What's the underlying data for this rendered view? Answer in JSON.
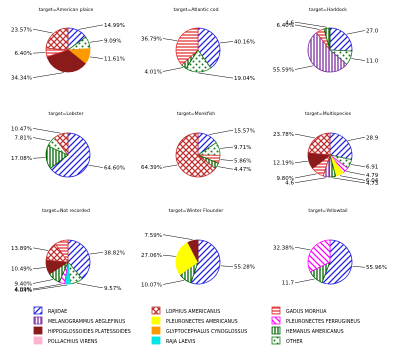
{
  "categories": {
    "RAJIDAE": {
      "color": "#1f1fe0",
      "pattern": "diag"
    },
    "MELANOGRAMMUS AEGLEFINUS": {
      "color": "#7b2fa0",
      "pattern": "vert"
    },
    "HIPPOGLOSSOIDES PLATESSOIDES": {
      "color": "#8b1a1a",
      "pattern": "solid"
    },
    "POLLACHIUS VIRENS": {
      "color": "#ffb3d0",
      "pattern": "solid"
    },
    "LOPHIUS AMERICANUS": {
      "color": "#c03030",
      "pattern": "cross"
    },
    "PLEURONECTES AMERICANUS": {
      "color": "#ffff00",
      "pattern": "solid"
    },
    "GLYPTOCEPHALUS CYNOGLOSSUS": {
      "color": "#ff9900",
      "pattern": "solid"
    },
    "RAJA LAEVIS": {
      "color": "#00e5e5",
      "pattern": "solid"
    },
    "GADUS MORHUA": {
      "color": "#e03030",
      "pattern": "horiz"
    },
    "PLEURONECTES FERRUGINEUS": {
      "color": "#ff00ff",
      "pattern": "diag2"
    },
    "HEMANUS AMERICANUS": {
      "color": "#006400",
      "pattern": "vert"
    },
    "OTHER": {
      "color": "#1a7a1a",
      "pattern": "dots"
    }
  },
  "legend": [
    "RAJIDAE",
    "LOPHIUS AMERICANUS",
    "GADUS MORHUA",
    "MELANOGRAMMUS AEGLEFINUS",
    "PLEURONECTES AMERICANUS",
    "PLEURONECTES FERRUGINEUS",
    "HIPPOGLOSSOIDES PLATESSOIDES",
    "GLYPTOCEPHALUS CYNOGLOSSUS",
    "HEMANUS AMERICANUS",
    "POLLACHIUS VIRENS",
    "RAJA LAEVIS",
    "OTHER"
  ],
  "chart_data": [
    {
      "type": "pie",
      "title": "target=American plaice",
      "slices": [
        {
          "category": "RAJIDAE",
          "value": 14.99,
          "label": "14.99%"
        },
        {
          "category": "OTHER",
          "value": 9.09,
          "label": "9.09%"
        },
        {
          "category": "GLYPTOCEPHALUS CYNOGLOSSUS",
          "value": 11.61,
          "label": "11.61%"
        },
        {
          "category": "HIPPOGLOSSOIDES PLATESSOIDES",
          "value": 34.34,
          "label": "34.34%"
        },
        {
          "category": "GADUS MORHUA",
          "value": 6.4,
          "label": "6.40%"
        },
        {
          "category": "LOPHIUS AMERICANUS",
          "value": 23.57,
          "label": "23.57%"
        }
      ]
    },
    {
      "type": "pie",
      "title": "target=Atlantic cod",
      "slices": [
        {
          "category": "RAJIDAE",
          "value": 40.16,
          "label": "40.16%"
        },
        {
          "category": "OTHER",
          "value": 19.04,
          "label": "19.04%"
        },
        {
          "category": "HEMANUS AMERICANUS",
          "value": 4.01,
          "label": "4.01%"
        },
        {
          "category": "GADUS MORHUA",
          "value": 36.79,
          "label": "36.79%"
        }
      ]
    },
    {
      "type": "pie",
      "title": "target=Haddock",
      "slices": [
        {
          "category": "RAJIDAE",
          "value": 27.0,
          "label": "27.0"
        },
        {
          "category": "OTHER",
          "value": 11.0,
          "label": "11.0"
        },
        {
          "category": "MELANOGRAMMUS AEGLEFINUS",
          "value": 55.59,
          "label": "55.59%"
        },
        {
          "category": "GADUS MORHUA",
          "value": 6.4,
          "label": "6.40%"
        },
        {
          "category": "HEMANUS AMERICANUS",
          "value": 4.6,
          "label": "4.6"
        }
      ]
    },
    {
      "type": "pie",
      "title": "target=Lobster",
      "slices": [
        {
          "category": "RAJIDAE",
          "value": 64.6,
          "label": "64.60%"
        },
        {
          "category": "HEMANUS AMERICANUS",
          "value": 17.08,
          "label": "17.08%"
        },
        {
          "category": "OTHER",
          "value": 7.81,
          "label": "7.81%"
        },
        {
          "category": "LOPHIUS AMERICANUS",
          "value": 10.47,
          "label": "10.47%"
        }
      ]
    },
    {
      "type": "pie",
      "title": "target=Monkfish",
      "slices": [
        {
          "category": "RAJIDAE",
          "value": 15.57,
          "label": "15.57%"
        },
        {
          "category": "OTHER",
          "value": 9.71,
          "label": "9.71%"
        },
        {
          "category": "GADUS MORHUA",
          "value": 5.86,
          "label": "5.86%"
        },
        {
          "category": "HEMANUS AMERICANUS",
          "value": 4.47,
          "label": "4.47%"
        },
        {
          "category": "LOPHIUS AMERICANUS",
          "value": 64.39,
          "label": "64.39%"
        }
      ]
    },
    {
      "type": "pie",
      "title": "target=Multispecies",
      "slices": [
        {
          "category": "RAJIDAE",
          "value": 28.9,
          "label": "28.9"
        },
        {
          "category": "OTHER",
          "value": 6.91,
          "label": "6.91"
        },
        {
          "category": "PLEURONECTES FERRUGINEUS",
          "value": 4.79,
          "label": "4.79"
        },
        {
          "category": "PLEURONECTES AMERICANUS",
          "value": 6.04,
          "label": "6.04"
        },
        {
          "category": "HEMANUS AMERICANUS",
          "value": 4.73,
          "label": "4.73"
        },
        {
          "category": "MELANOGRAMMUS AEGLEFINUS",
          "value": 4.6,
          "label": "4.6"
        },
        {
          "category": "GADUS MORHUA",
          "value": 9.8,
          "label": "9.80%"
        },
        {
          "category": "HIPPOGLOSSOIDES PLATESSOIDES",
          "value": 12.19,
          "label": "12.19%"
        },
        {
          "category": "LOPHIUS AMERICANUS",
          "value": 23.78,
          "label": "23.78%"
        }
      ]
    },
    {
      "type": "pie",
      "title": "target=Not recorded",
      "slices": [
        {
          "category": "RAJIDAE",
          "value": 38.82,
          "label": "38.82%"
        },
        {
          "category": "OTHER",
          "value": 9.57,
          "label": "9.57%"
        },
        {
          "category": "RAJA LAEVIS",
          "value": 4.04,
          "label": "4.04%"
        },
        {
          "category": "PLEURONECTES FERRUGINEUS",
          "value": 4.09,
          "label": "4.09%"
        },
        {
          "category": "HEMANUS AMERICANUS",
          "value": 9.4,
          "label": "9.40%"
        },
        {
          "category": "HIPPOGLOSSOIDES PLATESSOIDES",
          "value": 10.49,
          "label": "10.49%"
        },
        {
          "category": "LOPHIUS AMERICANUS",
          "value": 13.89,
          "label": "13.89%"
        },
        {
          "category": "GADUS MORHUA",
          "value": 9.7,
          "label": ""
        }
      ]
    },
    {
      "type": "pie",
      "title": "target=Winter Flounder",
      "slices": [
        {
          "category": "RAJIDAE",
          "value": 55.28,
          "label": "55.28%"
        },
        {
          "category": "HEMANUS AMERICANUS",
          "value": 10.07,
          "label": "10.07%"
        },
        {
          "category": "PLEURONECTES AMERICANUS",
          "value": 27.06,
          "label": "27.06%"
        },
        {
          "category": "HIPPOGLOSSOIDES PLATESSOIDES",
          "value": 7.59,
          "label": "7.59%"
        }
      ]
    },
    {
      "type": "pie",
      "title": "target=Yellowtail",
      "slices": [
        {
          "category": "RAJIDAE",
          "value": 55.96,
          "label": "55.96%"
        },
        {
          "category": "HEMANUS AMERICANUS",
          "value": 11.7,
          "label": "11.7"
        },
        {
          "category": "PLEURONECTES FERRUGINEUS",
          "value": 32.38,
          "label": "32.38%"
        }
      ]
    }
  ]
}
